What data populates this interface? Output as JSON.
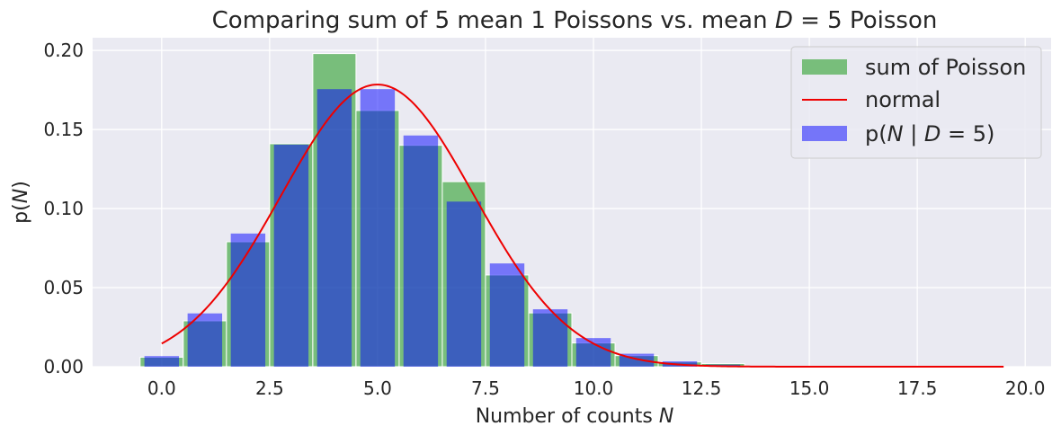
{
  "chart_data": {
    "type": "bar",
    "title": "Comparing sum of 5 mean 1 Poissons vs. mean D = 5 Poisson",
    "xlabel": "Number of counts N",
    "ylabel": "p(N)",
    "xlim": [
      -1.6,
      20.6
    ],
    "ylim": [
      0,
      0.208
    ],
    "xticks": [
      "0.0",
      "2.5",
      "5.0",
      "7.5",
      "10.0",
      "12.5",
      "15.0",
      "17.5",
      "20.0"
    ],
    "yticks": [
      "0.00",
      "0.05",
      "0.10",
      "0.15",
      "0.20"
    ],
    "grid": true,
    "legend_position": "top-right",
    "colors": {
      "sum_of_poisson": "#2ca02c",
      "normal": "#ee0000",
      "poisson": "#0000ff",
      "background": "#eaeaf2",
      "grid": "#ffffff"
    },
    "series": [
      {
        "name": "sum of Poisson",
        "kind": "bar",
        "x": [
          0,
          1,
          2,
          3,
          4,
          5,
          6,
          7,
          8,
          9,
          10,
          11,
          12,
          13
        ],
        "values": [
          0.006,
          0.029,
          0.079,
          0.141,
          0.198,
          0.162,
          0.14,
          0.117,
          0.058,
          0.034,
          0.015,
          0.007,
          0.003,
          0.002
        ]
      },
      {
        "name": "normal",
        "kind": "line",
        "mean": 5.0,
        "std": 2.236
      },
      {
        "name": "p(N | D = 5)",
        "kind": "bar",
        "x": [
          0,
          1,
          2,
          3,
          4,
          5,
          6,
          7,
          8,
          9,
          10,
          11,
          12,
          13,
          14,
          15,
          16,
          17,
          18,
          19
        ],
        "values": [
          0.0067,
          0.0337,
          0.0842,
          0.1404,
          0.1755,
          0.1755,
          0.1462,
          0.1044,
          0.0653,
          0.0363,
          0.0181,
          0.0082,
          0.0034,
          0.0013,
          0.0005,
          0.0002,
          0.0001,
          0.0,
          0.0,
          0.0
        ]
      }
    ]
  }
}
